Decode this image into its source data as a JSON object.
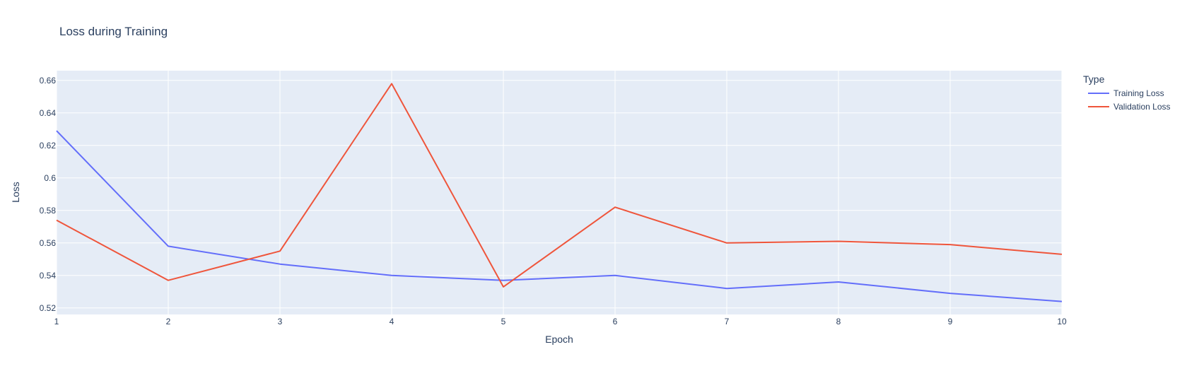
{
  "chart_data": {
    "type": "line",
    "title": "Loss during Training",
    "xlabel": "Epoch",
    "ylabel": "Loss",
    "x": [
      1,
      2,
      3,
      4,
      5,
      6,
      7,
      8,
      9,
      10
    ],
    "xlim": [
      1,
      10
    ],
    "ylim": [
      0.516,
      0.666
    ],
    "xticks": [
      "1",
      "2",
      "3",
      "4",
      "5",
      "6",
      "7",
      "8",
      "9",
      "10"
    ],
    "yticks": [
      0.52,
      0.54,
      0.56,
      0.58,
      0.6,
      0.62,
      0.64,
      0.66
    ],
    "ytick_labels": [
      "0.52",
      "0.54",
      "0.56",
      "0.58",
      "0.6",
      "0.62",
      "0.64",
      "0.66"
    ],
    "grid": true,
    "legend": {
      "title": "Type",
      "placement": "right"
    },
    "series": [
      {
        "name": "Training Loss",
        "color": "#636efa",
        "values": [
          0.629,
          0.558,
          0.547,
          0.54,
          0.537,
          0.54,
          0.532,
          0.536,
          0.529,
          0.524
        ]
      },
      {
        "name": "Validation Loss",
        "color": "#ef553b",
        "values": [
          0.574,
          0.537,
          0.555,
          0.658,
          0.533,
          0.582,
          0.56,
          0.561,
          0.559,
          0.553
        ]
      }
    ],
    "colors": {
      "plot_background": "#e5ecf6",
      "gridline": "#ffffff",
      "text": "#2a3f5f"
    }
  }
}
